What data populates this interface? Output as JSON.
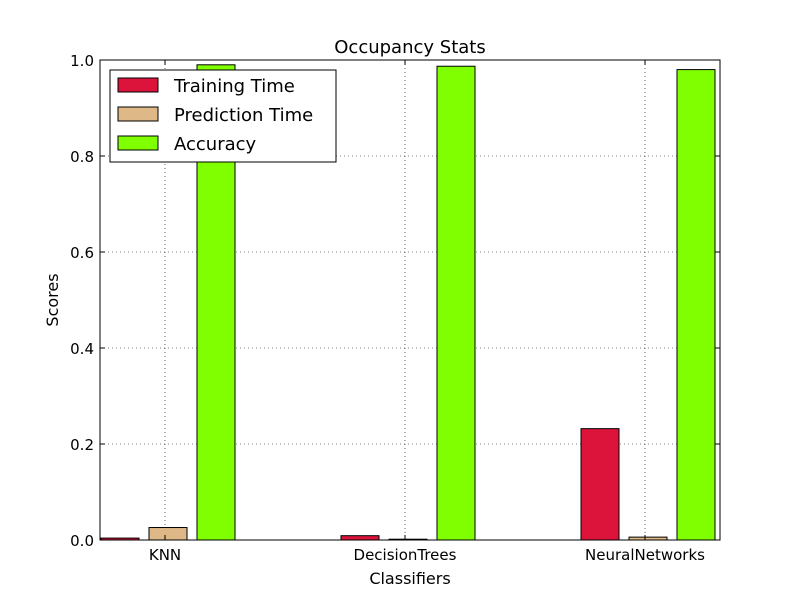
{
  "chart_data": {
    "type": "bar",
    "title": "Occupancy Stats",
    "xlabel": "Classifiers",
    "ylabel": "Scores",
    "categories": [
      "KNN",
      "DecisionTrees",
      "NeuralNetworks"
    ],
    "ylim": [
      0.0,
      1.0
    ],
    "yticks": [
      "0.0",
      "0.2",
      "0.4",
      "0.6",
      "0.8",
      "1.0"
    ],
    "grid": true,
    "legend_position": "top-left",
    "series": [
      {
        "name": "Training Time",
        "color": "#dc143c",
        "values": [
          0.004,
          0.009,
          0.232
        ]
      },
      {
        "name": "Prediction Time",
        "color": "#deb887",
        "values": [
          0.026,
          0.001,
          0.006
        ]
      },
      {
        "name": "Accuracy",
        "color": "#7fff00",
        "values": [
          0.99,
          0.987,
          0.98
        ]
      }
    ]
  }
}
